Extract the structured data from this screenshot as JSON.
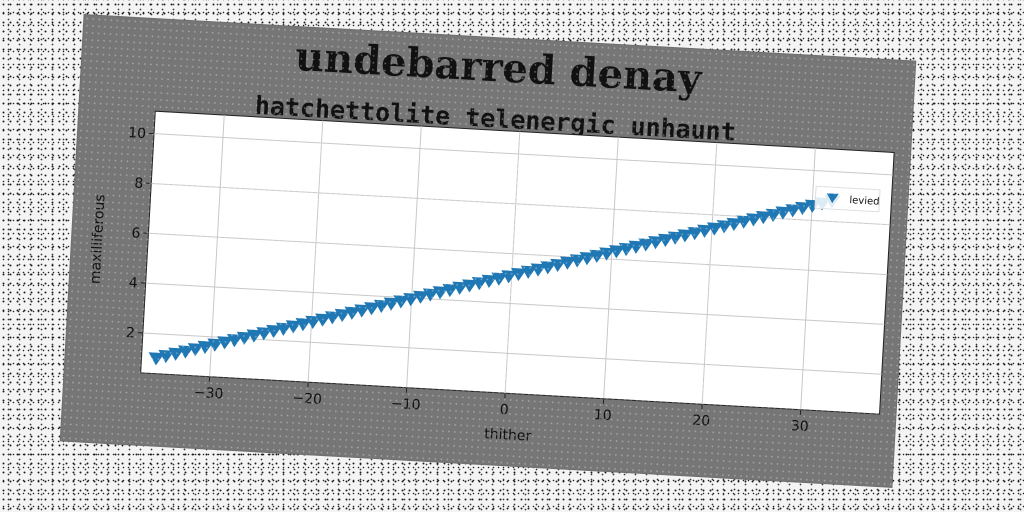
{
  "chart_data": {
    "type": "scatter",
    "title": "undebarred denay",
    "subtitle": "hatchettolite telenergic unhaunt",
    "xlabel": "thither",
    "ylabel": "maxilliferous",
    "xlim": [
      -37,
      38
    ],
    "ylim": [
      0.4,
      10.9
    ],
    "xticks": [
      -30,
      -20,
      -10,
      0,
      10,
      20,
      30
    ],
    "yticks": [
      2,
      4,
      6,
      8,
      10
    ],
    "grid": true,
    "legend_position": "top-right",
    "marker": "triangle-down",
    "color": "#1f77b4",
    "series": [
      {
        "name": "levied",
        "x_range": [
          -35.5,
          32
        ],
        "count": 70,
        "y_start": 1.05,
        "y_end": 8.85
      }
    ]
  }
}
